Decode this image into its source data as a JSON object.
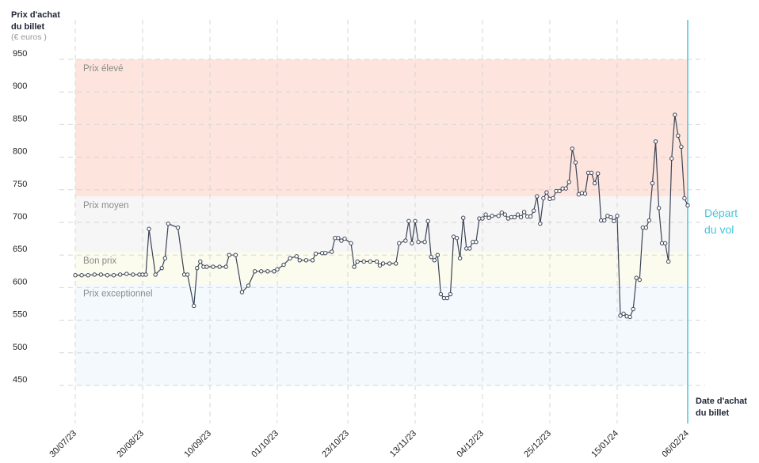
{
  "chart_data": {
    "type": "line",
    "y_title": [
      "Prix d'achat",
      "du billet"
    ],
    "y_unit": "(€ euros )",
    "x_title": [
      "Date d'achat",
      "du billet"
    ],
    "ylim": [
      450,
      950
    ],
    "yticks": [
      450,
      500,
      550,
      600,
      650,
      700,
      750,
      800,
      850,
      900,
      950
    ],
    "xlim": [
      "30/07/23",
      "06/02/24"
    ],
    "xticks": [
      "30/07/23",
      "20/08/23",
      "10/09/23",
      "01/10/23",
      "23/10/23",
      "13/11/23",
      "04/12/23",
      "25/12/23",
      "15/01/24",
      "06/02/24"
    ],
    "grid": true,
    "bands": [
      {
        "label": "Prix élevé",
        "from": 740,
        "to": 950,
        "color": "#fde4dc"
      },
      {
        "label": "Prix moyen",
        "from": 655,
        "to": 740,
        "color": "#f6f6f6"
      },
      {
        "label": "Bon prix",
        "from": 605,
        "to": 655,
        "color": "#fbfbee"
      },
      {
        "label": "Prix exceptionnel",
        "from": 450,
        "to": 605,
        "color": "#f3f9fc"
      }
    ],
    "departure": {
      "x": "06/02/24",
      "label": [
        "Départ",
        "du vol"
      ],
      "color": "#45c6df"
    },
    "x": [
      "30/07/23",
      "01/08/23",
      "03/08/23",
      "05/08/23",
      "07/08/23",
      "09/08/23",
      "11/08/23",
      "13/08/23",
      "15/08/23",
      "17/08/23",
      "19/08/23",
      "20/08/23",
      "21/08/23",
      "22/08/23",
      "24/08/23",
      "26/08/23",
      "27/08/23",
      "28/08/23",
      "31/08/23",
      "02/09/23",
      "03/09/23",
      "05/09/23",
      "06/09/23",
      "07/09/23",
      "08/09/23",
      "09/09/23",
      "11/09/23",
      "13/09/23",
      "15/09/23",
      "16/09/23",
      "18/09/23",
      "20/09/23",
      "22/09/23",
      "24/09/23",
      "26/09/23",
      "28/09/23",
      "30/09/23",
      "01/10/23",
      "03/10/23",
      "05/10/23",
      "07/10/23",
      "08/10/23",
      "10/10/23",
      "12/10/23",
      "13/10/23",
      "15/10/23",
      "16/10/23",
      "18/10/23",
      "19/10/23",
      "20/10/23",
      "21/10/23",
      "22/10/23",
      "24/10/23",
      "25/10/23",
      "26/10/23",
      "28/10/23",
      "30/10/23",
      "01/11/23",
      "02/11/23",
      "03/11/23",
      "05/11/23",
      "07/11/23",
      "08/11/23",
      "10/11/23",
      "11/11/23",
      "12/11/23",
      "13/11/23",
      "14/11/23",
      "16/11/23",
      "17/11/23",
      "18/11/23",
      "19/11/23",
      "20/11/23",
      "21/11/23",
      "22/11/23",
      "23/11/23",
      "24/11/23",
      "25/11/23",
      "26/11/23",
      "27/11/23",
      "28/11/23",
      "29/11/23",
      "30/11/23",
      "01/12/23",
      "02/12/23",
      "03/12/23",
      "04/12/23",
      "05/12/23",
      "06/12/23",
      "07/12/23",
      "09/12/23",
      "10/12/23",
      "11/12/23",
      "12/12/23",
      "13/12/23",
      "14/12/23",
      "15/12/23",
      "16/12/23",
      "17/12/23",
      "18/12/23",
      "19/12/23",
      "20/12/23",
      "21/12/23",
      "22/12/23",
      "23/12/23",
      "24/12/23",
      "25/12/23",
      "26/12/23",
      "27/12/23",
      "28/12/23",
      "29/12/23",
      "30/12/23",
      "31/12/23",
      "01/01/24",
      "02/01/24",
      "03/01/24",
      "04/01/24",
      "05/01/24",
      "06/01/24",
      "07/01/24",
      "08/01/24",
      "09/01/24",
      "10/01/24",
      "11/01/24",
      "12/01/24",
      "13/01/24",
      "14/01/24",
      "15/01/24",
      "16/01/24",
      "17/01/24",
      "18/01/24",
      "19/01/24",
      "20/01/24",
      "21/01/24",
      "22/01/24",
      "23/01/24",
      "24/01/24",
      "25/01/24",
      "26/01/24",
      "27/01/24",
      "28/01/24",
      "29/01/24",
      "30/01/24",
      "31/01/24",
      "01/02/24",
      "02/02/24",
      "03/02/24",
      "04/02/24",
      "05/02/24",
      "06/02/24"
    ],
    "series": [
      {
        "name": "Prix",
        "color": "#3b4457",
        "values": [
          619,
          619,
          619,
          620,
          620,
          619,
          619,
          620,
          621,
          620,
          620,
          620,
          620,
          690,
          620,
          630,
          645,
          698,
          692,
          620,
          620,
          572,
          630,
          640,
          632,
          632,
          632,
          632,
          632,
          650,
          650,
          593,
          603,
          625,
          625,
          625,
          625,
          628,
          635,
          645,
          648,
          642,
          642,
          642,
          652,
          653,
          653,
          655,
          676,
          676,
          672,
          675,
          668,
          632,
          640,
          640,
          640,
          640,
          634,
          637,
          637,
          637,
          668,
          672,
          702,
          668,
          702,
          670,
          670,
          702,
          647,
          642,
          650,
          590,
          584,
          584,
          590,
          678,
          676,
          645,
          707,
          660,
          660,
          670,
          670,
          706,
          706,
          712,
          707,
          710,
          710,
          715,
          712,
          706,
          708,
          708,
          712,
          708,
          716,
          709,
          709,
          718,
          740,
          698,
          737,
          746,
          736,
          737,
          748,
          748,
          752,
          752,
          762,
          813,
          792,
          743,
          745,
          744,
          776,
          776,
          760,
          775,
          703,
          703,
          710,
          708,
          702,
          710,
          557,
          560,
          556,
          555,
          567,
          615,
          612,
          692,
          692,
          703,
          760,
          824,
          722,
          668,
          668,
          640,
          798,
          865,
          833,
          816,
          737,
          726
        ]
      }
    ]
  }
}
